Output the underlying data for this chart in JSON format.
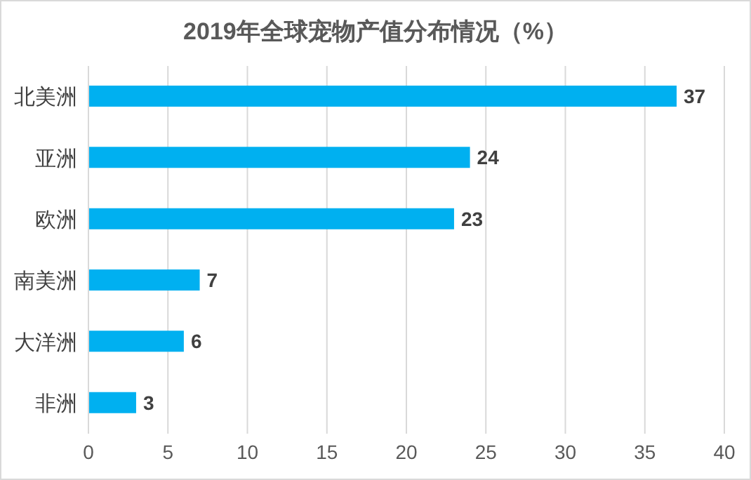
{
  "chart_data": {
    "type": "bar",
    "orientation": "horizontal",
    "title": "2019年全球宠物产值分布情况（%）",
    "categories": [
      "北美洲",
      "亚洲",
      "欧洲",
      "南美洲",
      "大洋洲",
      "非洲"
    ],
    "values": [
      37,
      24,
      23,
      7,
      6,
      3
    ],
    "color": "#00b0f0",
    "xlim": [
      0,
      40
    ],
    "xticks": [
      0,
      5,
      10,
      15,
      20,
      25,
      30,
      35,
      40
    ],
    "grid": "x",
    "data_labels": true
  }
}
